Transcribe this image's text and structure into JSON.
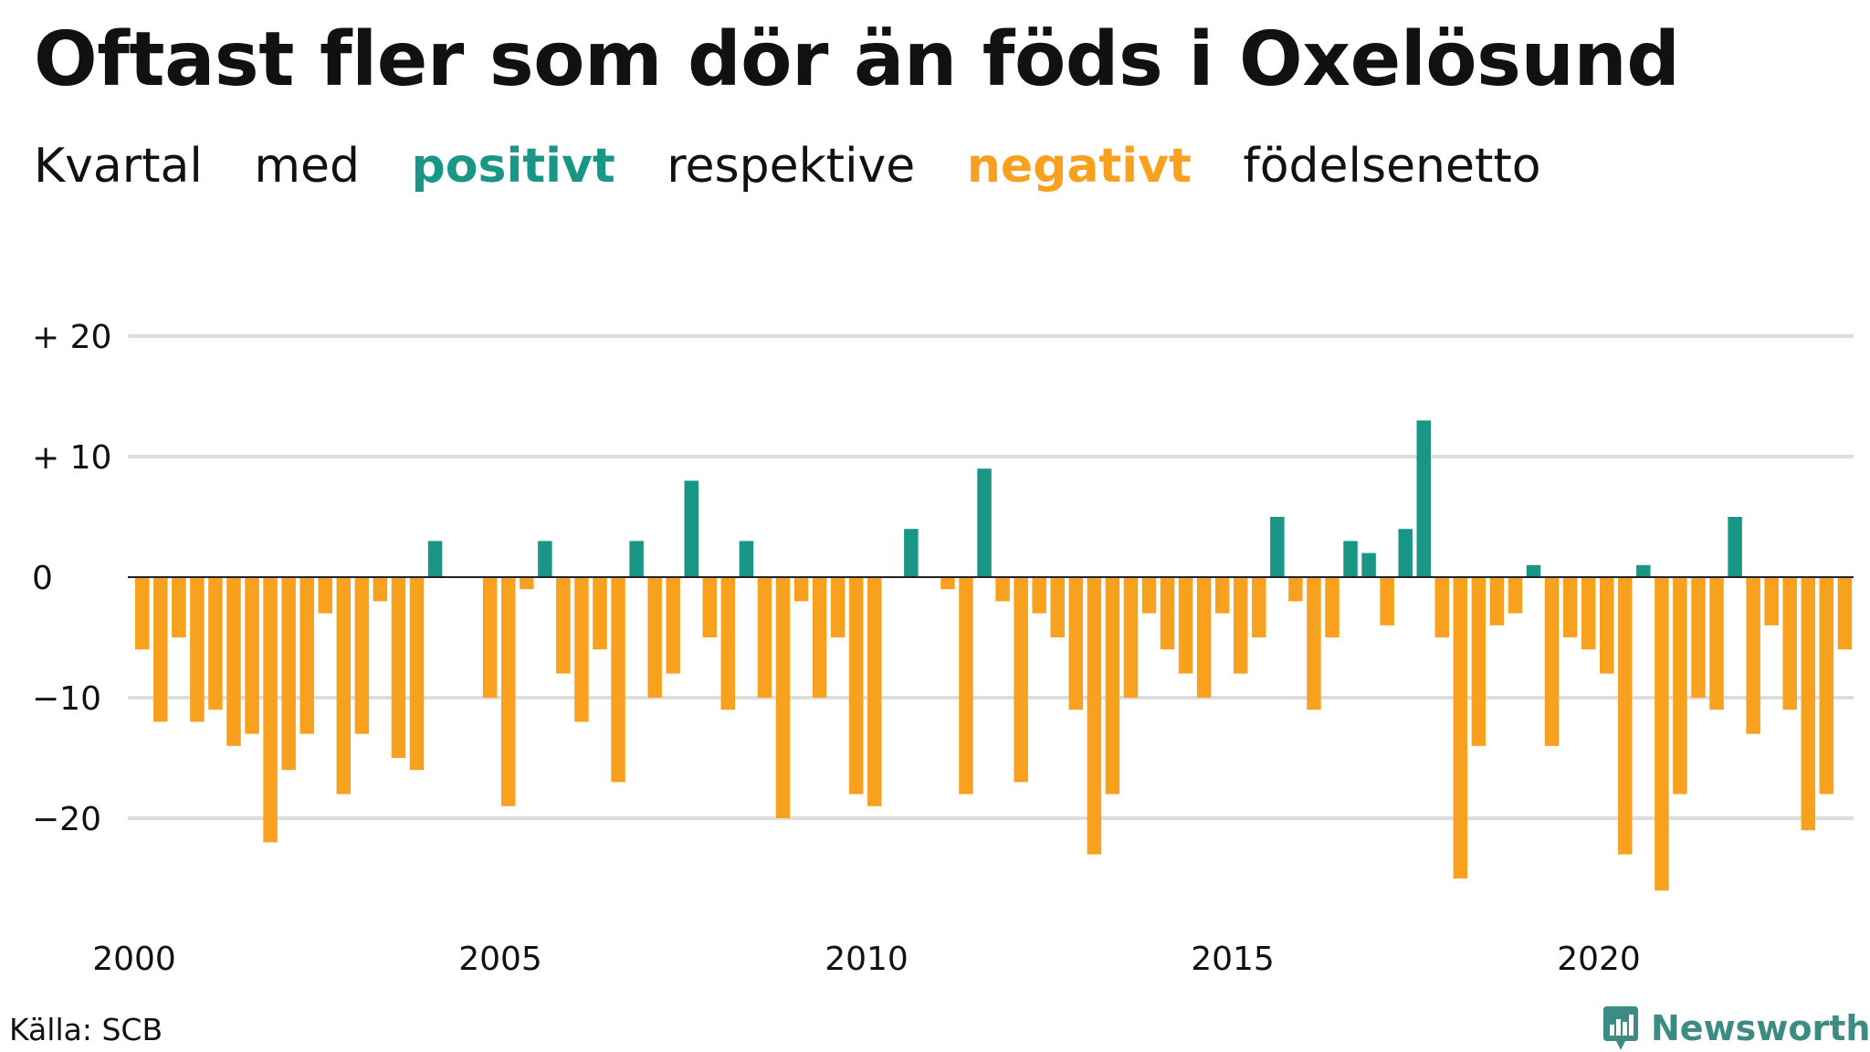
{
  "title": "Oftast fler som dör än föds i Oxelösund",
  "subtitle": {
    "w1": "Kvartal",
    "w2": "med",
    "w3": "positivt",
    "w4": "respektive",
    "w5": "negativt",
    "w6": "födelsenetto"
  },
  "source": "Källa: SCB",
  "brand": "Newsworthy",
  "colors": {
    "positive": "#1a9687",
    "negative": "#f7a11e",
    "grid": "#dddddd",
    "zero_line": "#222222",
    "brand": "#3d8c84"
  },
  "chart_data": {
    "type": "bar",
    "title": "Oftast fler som dör än föds i Oxelösund",
    "subtitle": "Kvartal med positivt respektive negativt födelsenetto",
    "xlabel": "",
    "ylabel": "",
    "first_quarter": "2000 Q1",
    "x_tick_labels": [
      "2000",
      "2005",
      "2010",
      "2015",
      "2020"
    ],
    "y_ticks": [
      {
        "value": 20,
        "label": "+ 20"
      },
      {
        "value": 10,
        "label": "+ 10"
      },
      {
        "value": 0,
        "label": "0"
      },
      {
        "value": -10,
        "label": "−10"
      },
      {
        "value": -20,
        "label": "−20"
      }
    ],
    "ylim": [
      -28,
      21
    ],
    "grid": true,
    "values": [
      -6,
      -12,
      -5,
      -12,
      -11,
      -14,
      -13,
      -22,
      -16,
      -13,
      -3,
      -18,
      -13,
      -2,
      -15,
      -16,
      3,
      0,
      0,
      -10,
      -19,
      -1,
      3,
      -8,
      -12,
      -6,
      -17,
      3,
      -10,
      -8,
      8,
      -5,
      -11,
      3,
      -10,
      -20,
      -2,
      -10,
      -5,
      -18,
      -19,
      0,
      4,
      0,
      -1,
      -18,
      9,
      -2,
      -17,
      -3,
      -5,
      -11,
      -23,
      -18,
      -10,
      -3,
      -6,
      -8,
      -10,
      -3,
      -8,
      -5,
      5,
      -2,
      -11,
      -5,
      3,
      2,
      -4,
      4,
      13,
      -5,
      -25,
      -14,
      -4,
      -3,
      1,
      -14,
      -5,
      -6,
      -8,
      -23,
      1,
      -26,
      -18,
      -10,
      -11,
      5,
      -13,
      -4,
      -11,
      -21,
      -18,
      -6
    ]
  }
}
